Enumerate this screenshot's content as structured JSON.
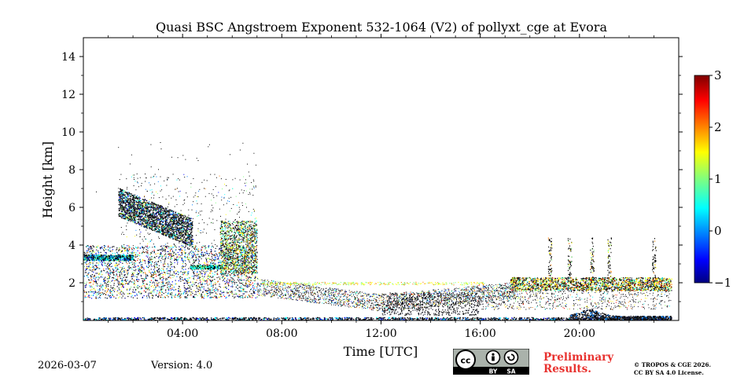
{
  "header": {
    "title": "Quasi BSC Angstroem Exponent 532-1064 (V2) of pollyxt_cge at Evora"
  },
  "footer": {
    "date": "2026-03-07",
    "version": "Version: 4.0",
    "preliminary": [
      "Preliminary",
      "Results."
    ],
    "copyright": [
      "© TROPOS & CGE 2026.",
      "CC BY SA 4.0 License."
    ],
    "license_badge": {
      "cc": "cc",
      "by": "BY",
      "sa": "SA"
    }
  },
  "chart_data": {
    "type": "heatmap",
    "title": "Quasi BSC Angstroem Exponent 532-1064 (V2) of pollyxt_cge at Evora",
    "xlabel": "Time [UTC]",
    "ylabel": "Height [km]",
    "xlim": [
      0,
      24
    ],
    "ylim": [
      0,
      15
    ],
    "x_ticks": [
      4,
      8,
      12,
      16,
      20
    ],
    "x_tick_labels": [
      "04:00",
      "08:00",
      "12:00",
      "16:00",
      "20:00"
    ],
    "y_ticks": [
      2,
      4,
      6,
      8,
      10,
      12,
      14
    ],
    "y_tick_labels": [
      "2",
      "4",
      "6",
      "8",
      "10",
      "12",
      "14"
    ],
    "colorbar": {
      "range": [
        -1,
        3
      ],
      "ticks": [
        -1,
        0,
        1,
        2,
        3
      ],
      "tick_labels": [
        "−1",
        "0",
        "1",
        "2",
        "3"
      ],
      "colormap": "jet",
      "colors": [
        "#00007f",
        "#0000ff",
        "#007fff",
        "#00ffff",
        "#7fff7f",
        "#ffff00",
        "#ff7f00",
        "#ff0000",
        "#7f0000"
      ]
    },
    "features": [
      {
        "name": "surface-layer",
        "t": [
          0,
          23.7
        ],
        "h": [
          0.0,
          0.2
        ],
        "value": -0.5
      },
      {
        "name": "boundary-layer-top-morning",
        "t": [
          0,
          7.0
        ],
        "h": [
          2.6,
          3.6
        ],
        "value": 0.8
      },
      {
        "name": "elevated-plume",
        "t": [
          1.4,
          4.4
        ],
        "h": [
          3.8,
          6.6
        ],
        "value": -0.6
      },
      {
        "name": "convective-column",
        "t": [
          5.5,
          7.0
        ],
        "h": [
          2.5,
          5.0
        ],
        "value": 0.5
      },
      {
        "name": "afternoon-layer",
        "t": [
          17.5,
          23.7
        ],
        "h": [
          1.7,
          2.3
        ],
        "value": 1.5
      },
      {
        "name": "evening-surface-layer",
        "t": [
          19.6,
          23.7
        ],
        "h": [
          0.0,
          0.6
        ],
        "value": -0.4
      }
    ]
  }
}
